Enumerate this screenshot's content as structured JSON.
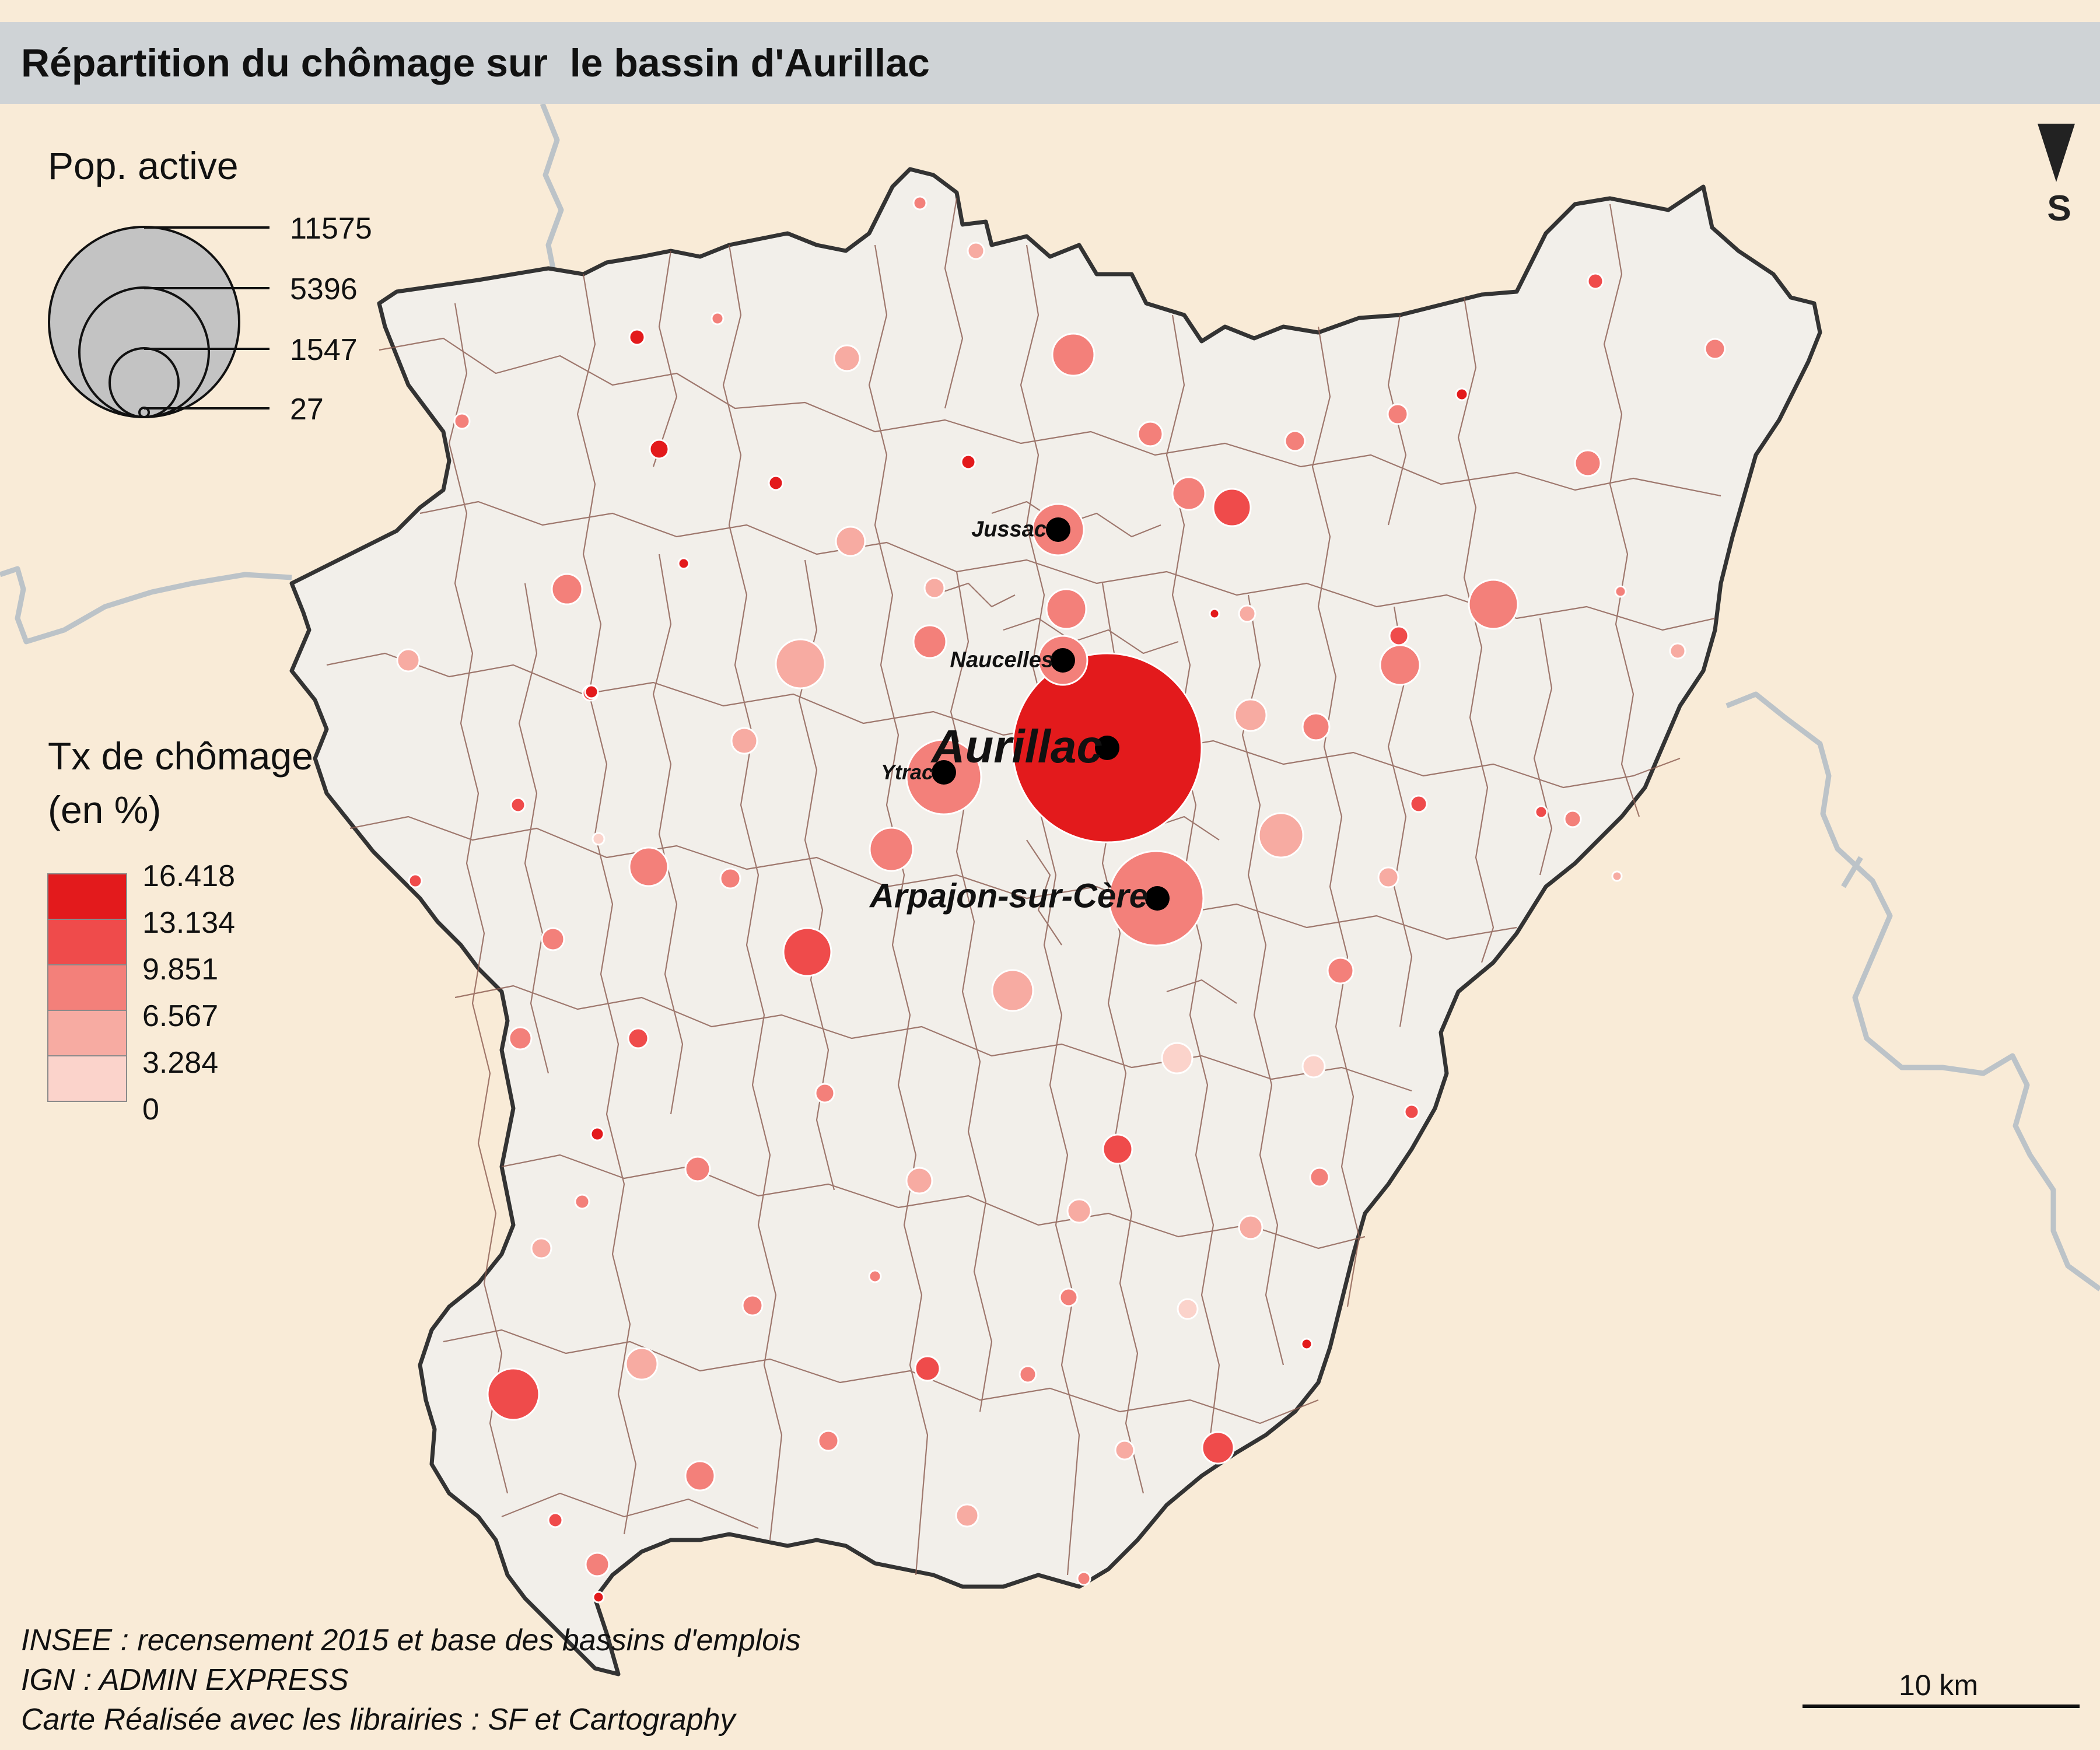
{
  "title": "Répartition du chômage sur  le bassin d'Aurillac",
  "north_arrow": {
    "label": "S"
  },
  "legend_size": {
    "title": "Pop. active",
    "values": [
      "11575",
      "5396",
      "1547",
      "27"
    ]
  },
  "legend_color": {
    "title_line1": "Tx de chômage",
    "title_line2": "(en %)",
    "breaks": [
      "16.418",
      "13.134",
      "9.851",
      "6.567",
      "3.284",
      "0"
    ],
    "colors": [
      "#e31a1c",
      "#ef4b4b",
      "#f3807a",
      "#f7aba2",
      "#fbd3cb"
    ]
  },
  "cities": [
    {
      "name": "Aurillac"
    },
    {
      "name": "Arpajon-sur-Cère"
    },
    {
      "name": "Ytrac"
    },
    {
      "name": "Naucelles"
    },
    {
      "name": "Jussac"
    }
  ],
  "sources": [
    "INSEE : recensement 2015 et base des bassins d'emplois",
    "IGN : ADMIN EXPRESS",
    "Carte Réalisée avec les librairies : SF et Cartography"
  ],
  "scale_bar": {
    "label": "10 km"
  },
  "colors": {
    "background": "#f9ebd7",
    "territory": "#f2efea",
    "commune_border": "#8a5a4e",
    "outer_border": "#333333",
    "dept_border": "#bcc3c8"
  }
}
